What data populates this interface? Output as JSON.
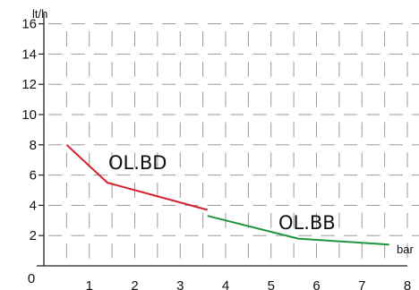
{
  "chart_data": {
    "type": "line",
    "xlabel": "bar",
    "ylabel": "lt/h",
    "xlim": [
      0,
      8
    ],
    "ylim": [
      0,
      16
    ],
    "x_ticks": [
      "0",
      "1",
      "2",
      "3",
      "4",
      "5",
      "6",
      "7",
      "8"
    ],
    "y_ticks": [
      "2",
      "4",
      "6",
      "8",
      "10",
      "12",
      "14",
      "16"
    ],
    "grid": true,
    "series": [
      {
        "name": "OL.BD",
        "color": "#d81e2c",
        "points": [
          [
            0.5,
            8.0
          ],
          [
            1.4,
            5.5
          ],
          [
            3.6,
            3.7
          ]
        ]
      },
      {
        "name": "OL.BB",
        "color": "#1f9440",
        "points": [
          [
            3.6,
            3.3
          ],
          [
            5.6,
            1.8
          ],
          [
            7.6,
            1.4
          ]
        ]
      }
    ]
  }
}
